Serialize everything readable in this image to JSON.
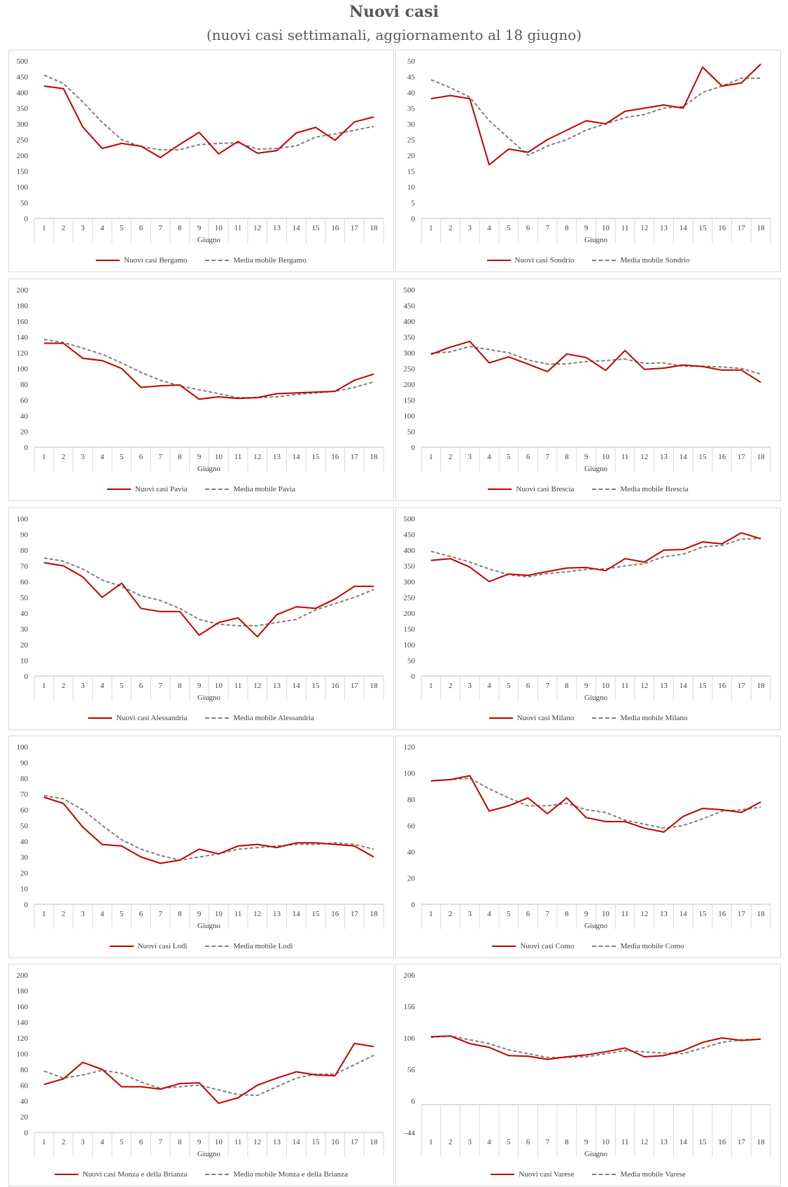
{
  "header": {
    "title": "Nuovi casi",
    "subtitle": "(nuovi casi settimanali, aggiornamento al 18 giugno)"
  },
  "colors": {
    "cases": "#c00000",
    "moving_average": "#808080",
    "axis": "#bfbfbf",
    "text": "#404040"
  },
  "chart_data": [
    {
      "type": "line",
      "xlabel": "Giugno",
      "categories": [
        "1",
        "2",
        "3",
        "4",
        "5",
        "6",
        "7",
        "8",
        "9",
        "10",
        "11",
        "12",
        "13",
        "14",
        "15",
        "16",
        "17",
        "18"
      ],
      "ylim": [
        0,
        500
      ],
      "yticks": [
        "0",
        "50",
        "100",
        "150",
        "200",
        "250",
        "300",
        "350",
        "400",
        "450",
        "500"
      ],
      "series": [
        {
          "name": "Nuovi casi Bergamo",
          "values": [
            420,
            412,
            290,
            222,
            238,
            229,
            193,
            235,
            273,
            205,
            244,
            207,
            215,
            271,
            289,
            248,
            306,
            322
          ]
        },
        {
          "name": "Media mobile Bergamo",
          "values": [
            455,
            428,
            370,
            305,
            250,
            228,
            218,
            218,
            234,
            238,
            240,
            220,
            222,
            230,
            258,
            268,
            280,
            292
          ]
        }
      ]
    },
    {
      "type": "line",
      "xlabel": "Giugno",
      "categories": [
        "1",
        "2",
        "3",
        "4",
        "5",
        "6",
        "7",
        "8",
        "9",
        "10",
        "11",
        "12",
        "13",
        "14",
        "15",
        "16",
        "17",
        "18"
      ],
      "ylim": [
        0,
        50
      ],
      "yticks": [
        "0",
        "5",
        "10",
        "15",
        "20",
        "25",
        "30",
        "35",
        "40",
        "45",
        "50"
      ],
      "series": [
        {
          "name": "Nuovi casi Sondrio",
          "values": [
            38,
            39,
            38,
            17,
            22,
            21,
            25,
            28,
            31,
            30,
            34,
            35,
            36,
            35,
            48,
            42,
            43,
            49
          ]
        },
        {
          "name": "Media mobile Sondrio",
          "values": [
            44,
            41.5,
            38.5,
            31,
            25.5,
            20,
            23,
            25,
            28,
            30,
            32,
            33,
            35,
            35.5,
            40,
            42,
            44.5,
            44.5
          ]
        }
      ]
    },
    {
      "type": "line",
      "xlabel": "Giugno",
      "categories": [
        "1",
        "2",
        "3",
        "4",
        "5",
        "6",
        "7",
        "8",
        "9",
        "10",
        "11",
        "12",
        "13",
        "14",
        "15",
        "16",
        "17",
        "18"
      ],
      "ylim": [
        0,
        200
      ],
      "yticks": [
        "0",
        "20",
        "40",
        "60",
        "80",
        "100",
        "120",
        "140",
        "160",
        "180",
        "200"
      ],
      "series": [
        {
          "name": "Nuovi casi Pavia",
          "values": [
            132,
            132,
            113,
            110,
            100,
            76,
            78,
            79,
            61,
            64,
            62,
            63,
            68,
            69,
            70,
            71,
            85,
            93
          ]
        },
        {
          "name": "Media mobile Pavia",
          "values": [
            137,
            133,
            126,
            118,
            107,
            95,
            85,
            78,
            73,
            68,
            63,
            63,
            64,
            67,
            69,
            71,
            76,
            83
          ]
        }
      ]
    },
    {
      "type": "line",
      "xlabel": "Giugno",
      "categories": [
        "1",
        "2",
        "3",
        "4",
        "5",
        "6",
        "7",
        "8",
        "9",
        "10",
        "11",
        "12",
        "13",
        "14",
        "15",
        "16",
        "17",
        "18"
      ],
      "ylim": [
        0,
        500
      ],
      "yticks": [
        "0",
        "50",
        "100",
        "150",
        "200",
        "250",
        "300",
        "350",
        "400",
        "450",
        "500"
      ],
      "series": [
        {
          "name": "Nuovi casi Brescia",
          "values": [
            295,
            318,
            336,
            268,
            287,
            264,
            240,
            296,
            285,
            244,
            307,
            247,
            251,
            261,
            256,
            245,
            245,
            206
          ]
        },
        {
          "name": "Media mobile Brescia",
          "values": [
            298,
            303,
            320,
            310,
            300,
            277,
            264,
            265,
            272,
            275,
            280,
            266,
            268,
            257,
            257,
            255,
            250,
            232
          ]
        }
      ]
    },
    {
      "type": "line",
      "xlabel": "Giugno",
      "categories": [
        "1",
        "2",
        "3",
        "4",
        "5",
        "6",
        "7",
        "8",
        "9",
        "10",
        "11",
        "12",
        "13",
        "14",
        "15",
        "16",
        "17",
        "18"
      ],
      "ylim": [
        0,
        100
      ],
      "yticks": [
        "0",
        "10",
        "20",
        "30",
        "40",
        "50",
        "60",
        "70",
        "80",
        "90",
        "100"
      ],
      "series": [
        {
          "name": "Nuovi casi Alessandria",
          "values": [
            72,
            70,
            63,
            50,
            59,
            43,
            41,
            41,
            26,
            34,
            37,
            25,
            39,
            44,
            43,
            49,
            57,
            57
          ]
        },
        {
          "name": "Media mobile Alessandria",
          "values": [
            75,
            73,
            68,
            61,
            57,
            51,
            48,
            43,
            36,
            33,
            32,
            32,
            34,
            36,
            42,
            46,
            50,
            55
          ]
        }
      ]
    },
    {
      "type": "line",
      "xlabel": "Giugno",
      "categories": [
        "1",
        "2",
        "3",
        "4",
        "5",
        "6",
        "7",
        "8",
        "9",
        "10",
        "11",
        "12",
        "13",
        "14",
        "15",
        "16",
        "17",
        "18"
      ],
      "ylim": [
        0,
        500
      ],
      "yticks": [
        "0",
        "50",
        "100",
        "150",
        "200",
        "250",
        "300",
        "350",
        "400",
        "450",
        "500"
      ],
      "series": [
        {
          "name": "Nuovi casi Milano",
          "values": [
            367,
            373,
            346,
            300,
            324,
            320,
            332,
            343,
            345,
            335,
            373,
            362,
            400,
            402,
            426,
            420,
            455,
            436
          ]
        },
        {
          "name": "Media mobile Milano",
          "values": [
            396,
            380,
            362,
            340,
            322,
            315,
            326,
            331,
            339,
            340,
            350,
            357,
            379,
            387,
            410,
            415,
            435,
            437
          ]
        }
      ]
    },
    {
      "type": "line",
      "xlabel": "Giugno",
      "categories": [
        "1",
        "2",
        "3",
        "4",
        "5",
        "6",
        "7",
        "8",
        "9",
        "10",
        "11",
        "12",
        "13",
        "14",
        "15",
        "16",
        "17",
        "18"
      ],
      "ylim": [
        0,
        100
      ],
      "yticks": [
        "0",
        "10",
        "20",
        "30",
        "40",
        "50",
        "60",
        "70",
        "80",
        "90",
        "100"
      ],
      "series": [
        {
          "name": "Nuovi casi Lodi",
          "values": [
            68,
            64,
            49,
            38,
            37,
            30,
            26,
            28,
            35,
            32,
            37,
            38,
            36,
            39,
            39,
            38,
            37,
            30
          ]
        },
        {
          "name": "Media mobile Lodi",
          "values": [
            69,
            67,
            60,
            50,
            41,
            35,
            31,
            28,
            30,
            32,
            35,
            36,
            37,
            38,
            38,
            39,
            38,
            35
          ]
        }
      ]
    },
    {
      "type": "line",
      "xlabel": "Giugno",
      "categories": [
        "1",
        "2",
        "3",
        "4",
        "5",
        "6",
        "7",
        "8",
        "9",
        "10",
        "11",
        "12",
        "13",
        "14",
        "15",
        "16",
        "17",
        "18"
      ],
      "ylim": [
        0,
        120
      ],
      "yticks": [
        "0",
        "20",
        "40",
        "60",
        "80",
        "100",
        "120"
      ],
      "series": [
        {
          "name": "Nuovi casi Como",
          "values": [
            94,
            95,
            98,
            71,
            75,
            81,
            69,
            81,
            66,
            63,
            63,
            58,
            55,
            67,
            73,
            72,
            70,
            78
          ]
        },
        {
          "name": "Media mobile Como",
          "values": [
            94,
            95,
            96,
            88,
            81,
            75,
            75,
            77,
            72,
            70,
            64,
            61,
            58,
            60,
            65,
            71,
            72,
            74
          ]
        }
      ]
    },
    {
      "type": "line",
      "xlabel": "Giugno",
      "categories": [
        "1",
        "2",
        "3",
        "4",
        "5",
        "6",
        "7",
        "8",
        "9",
        "10",
        "11",
        "12",
        "13",
        "14",
        "15",
        "16",
        "17",
        "18"
      ],
      "ylim": [
        0,
        200
      ],
      "yticks": [
        "0",
        "20",
        "40",
        "60",
        "80",
        "100",
        "120",
        "140",
        "160",
        "180",
        "200"
      ],
      "series": [
        {
          "name": "Nuovi casi Monza e della Brianza",
          "values": [
            61,
            68,
            89,
            80,
            58,
            58,
            55,
            62,
            63,
            37,
            44,
            60,
            69,
            77,
            73,
            72,
            113,
            109
          ]
        },
        {
          "name": "Media mobile Monza e della Brianza",
          "values": [
            78,
            69,
            73,
            79,
            75,
            64,
            56,
            58,
            60,
            54,
            48,
            47,
            58,
            69,
            74,
            74,
            86,
            98
          ]
        }
      ]
    },
    {
      "type": "line",
      "xlabel": "Giugno",
      "categories": [
        "1",
        "2",
        "3",
        "4",
        "5",
        "6",
        "7",
        "8",
        "9",
        "10",
        "11",
        "12",
        "13",
        "14",
        "15",
        "16",
        "17",
        "18"
      ],
      "ylim": [
        -44,
        206
      ],
      "yticks": [
        "-44",
        "6",
        "56",
        "106",
        "156",
        "206"
      ],
      "series": [
        {
          "name": "Nuovi casi Varese",
          "values": [
            108,
            109,
            97,
            91,
            78,
            77,
            72,
            76,
            79,
            84,
            90,
            76,
            78,
            86,
            99,
            106,
            102,
            104
          ]
        },
        {
          "name": "Media mobile Varese",
          "values": [
            107,
            109,
            103,
            97,
            87,
            81,
            75,
            75,
            76,
            81,
            86,
            84,
            82,
            81,
            90,
            99,
            103,
            104
          ]
        }
      ]
    }
  ]
}
